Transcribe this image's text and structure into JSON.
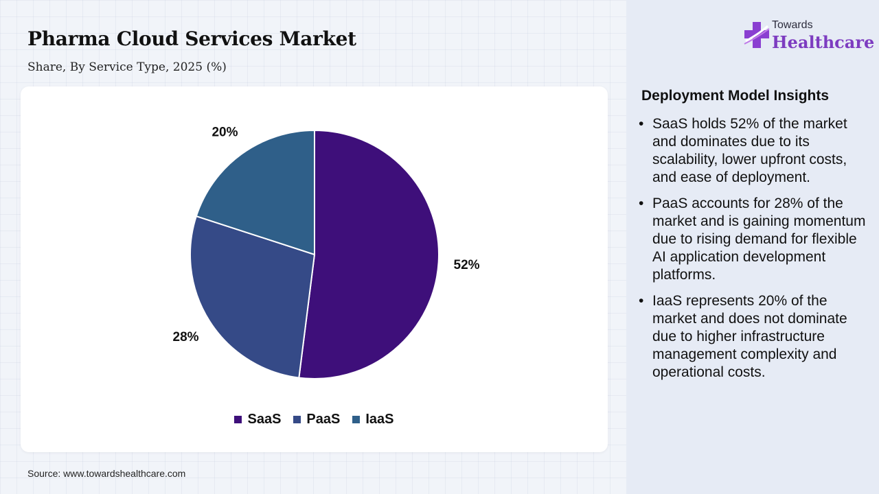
{
  "header": {
    "title": "Pharma Cloud Services Market",
    "subtitle": "Share, By Service Type, 2025 (%)"
  },
  "source": "Source: www.towardshealthcare.com",
  "logo": {
    "line1": "Towards",
    "line2": "Healthcare",
    "icon": "medical-cross-icon"
  },
  "chart_data": {
    "type": "pie",
    "categories": [
      "SaaS",
      "PaaS",
      "IaaS"
    ],
    "values": [
      52,
      28,
      20
    ],
    "data_labels": [
      "52%",
      "28%",
      "20%"
    ],
    "colors": [
      "#3e0f7a",
      "#354a87",
      "#2f5f89"
    ],
    "start_angle_deg": 0,
    "direction": "clockwise",
    "legend_position": "bottom"
  },
  "insights": {
    "title": "Deployment Model Insights",
    "bullet": "•",
    "items": [
      "SaaS holds 52% of the market and dominates due to its scalability, lower upfront costs, and ease of deployment.",
      "PaaS accounts for 28% of the market and is gaining momentum due to rising demand for flexible AI application development platforms.",
      "IaaS represents 20% of the market and does not dominate due to higher infrastructure management complexity and operational costs."
    ]
  }
}
